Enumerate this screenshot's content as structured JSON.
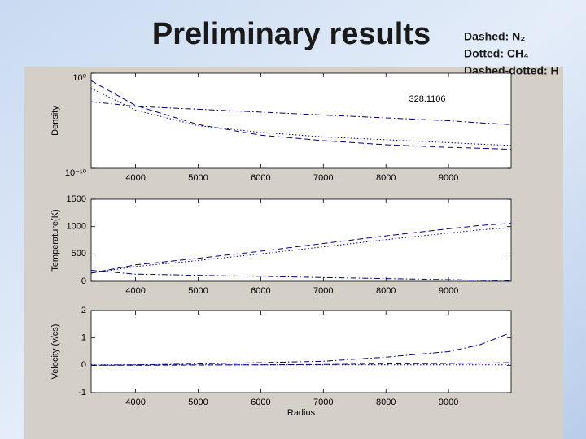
{
  "slide": {
    "title": "Preliminary results",
    "legend": [
      "Dashed: N₂",
      "Dotted: CH₄",
      "Dashed-dotted: H"
    ]
  },
  "chart_data": [
    {
      "type": "line",
      "ylabel": "Density",
      "yscale": "log",
      "annotation": "328.1106",
      "x": [
        3290,
        4000,
        5000,
        6000,
        7000,
        8000,
        9000,
        9500,
        10000
      ],
      "xlim": [
        3290,
        10000
      ],
      "xticks": [
        4000,
        5000,
        6000,
        7000,
        8000,
        9000
      ],
      "ylim": [
        1e-10,
        1
      ],
      "yticks": [
        {
          "value": 1,
          "label": "10⁰"
        },
        {
          "value": 1e-10,
          "label": "10⁻¹⁰"
        }
      ],
      "series": [
        {
          "line_style": "dashed",
          "color": "#000080",
          "values": [
            0.16,
            0.0004,
            4e-06,
            3e-07,
            8e-08,
            3e-08,
            1.6e-08,
            1.3e-08,
            1e-08
          ]
        },
        {
          "line_style": "dotted",
          "color": "#000080",
          "values": [
            0.025,
            0.00013,
            3e-06,
            6e-07,
            2e-07,
            1e-07,
            5e-08,
            3.5e-08,
            2.5e-08
          ]
        },
        {
          "line_style": "dash-dot",
          "color": "#000080",
          "values": [
            0.001,
            0.00032,
            0.00016,
            8e-05,
            4e-05,
            2e-05,
            1e-05,
            6e-06,
            4e-06
          ]
        }
      ]
    },
    {
      "type": "line",
      "ylabel": "Temperature(K)",
      "x": [
        3290,
        4000,
        5000,
        6000,
        7000,
        8000,
        9000,
        9500,
        10000
      ],
      "xlim": [
        3290,
        10000
      ],
      "xticks": [
        4000,
        5000,
        6000,
        7000,
        8000,
        9000
      ],
      "ylim": [
        0,
        1500
      ],
      "yticks": [
        0,
        500,
        1000,
        1500
      ],
      "series": [
        {
          "line_style": "dashed",
          "color": "#000080",
          "values": [
            150,
            300,
            420,
            550,
            690,
            830,
            960,
            1020,
            1060
          ]
        },
        {
          "line_style": "dotted",
          "color": "#000080",
          "values": [
            150,
            270,
            380,
            500,
            630,
            760,
            880,
            940,
            980
          ]
        },
        {
          "line_style": "dash-dot",
          "color": "#000080",
          "values": [
            200,
            130,
            110,
            90,
            70,
            50,
            30,
            20,
            10
          ]
        }
      ]
    },
    {
      "type": "line",
      "ylabel": "Velocity (v/cs)",
      "xlabel": "Radius",
      "x": [
        3290,
        4000,
        5000,
        6000,
        7000,
        8000,
        9000,
        9500,
        10000
      ],
      "xlim": [
        3290,
        10000
      ],
      "xticks": [
        4000,
        5000,
        6000,
        7000,
        8000,
        9000
      ],
      "ylim": [
        -1,
        2
      ],
      "yticks": [
        -1,
        0,
        1,
        2
      ],
      "series": [
        {
          "line_style": "dashed",
          "color": "#000080",
          "values": [
            0,
            0,
            0.01,
            0.02,
            0.03,
            0.05,
            0.07,
            0.08,
            0.1
          ]
        },
        {
          "line_style": "dotted",
          "color": "#000080",
          "values": [
            0.02,
            0.02,
            0.02,
            0.02,
            0.02,
            0.02,
            0.02,
            0.02,
            0.02
          ]
        },
        {
          "line_style": "dash-dot",
          "color": "#000080",
          "values": [
            0,
            0.02,
            0.05,
            0.1,
            0.15,
            0.3,
            0.5,
            0.75,
            1.2
          ]
        }
      ]
    }
  ]
}
